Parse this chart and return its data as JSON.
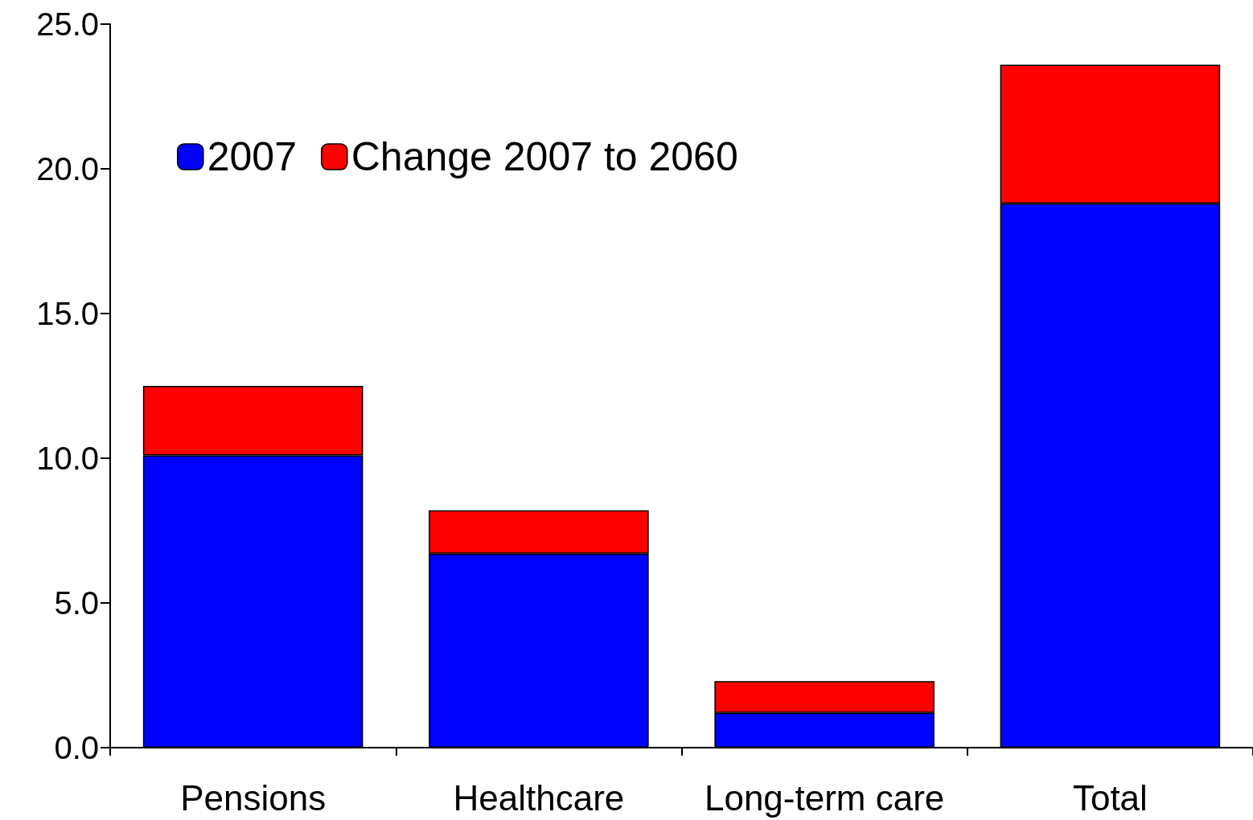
{
  "chart_data": {
    "type": "bar",
    "stacked": true,
    "categories": [
      "Pensions",
      "Healthcare",
      "Long-term care",
      "Total"
    ],
    "series": [
      {
        "name": "2007",
        "color": "#0000ff",
        "values": [
          10.1,
          6.7,
          1.2,
          18.8
        ]
      },
      {
        "name": "Change 2007 to 2060",
        "color": "#ff0000",
        "values": [
          2.4,
          1.5,
          1.1,
          4.8
        ]
      }
    ],
    "ylim": [
      0,
      25
    ],
    "yticks": [
      {
        "value": 0,
        "label": "0.0"
      },
      {
        "value": 5,
        "label": "5.0"
      },
      {
        "value": 10,
        "label": "10.0"
      },
      {
        "value": 15,
        "label": "15.0"
      },
      {
        "value": 20,
        "label": "20.0"
      },
      {
        "value": 25,
        "label": "25.0"
      }
    ],
    "grid": false,
    "legend": "top left"
  }
}
